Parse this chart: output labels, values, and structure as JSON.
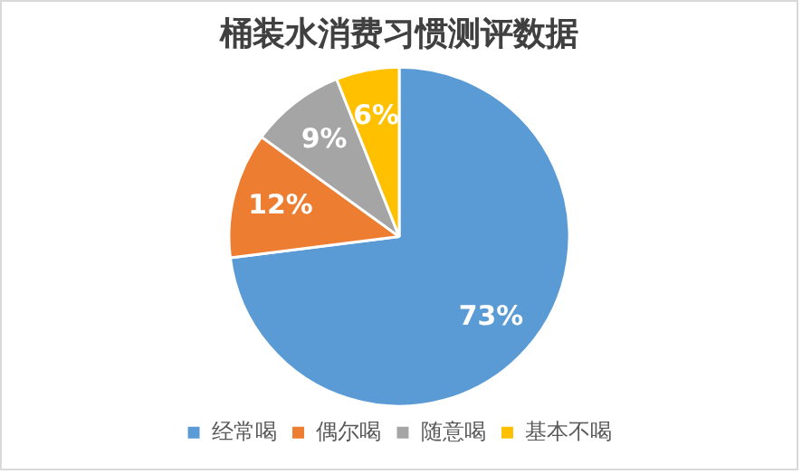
{
  "chart_data": {
    "type": "pie",
    "title": "桶装水消费习惯测评数据",
    "categories": [
      "经常喝",
      "偶尔喝",
      "随意喝",
      "基本不喝"
    ],
    "values": [
      73,
      12,
      9,
      6
    ],
    "colors": [
      "#5b9bd5",
      "#ed7d31",
      "#a5a5a5",
      "#ffc000"
    ],
    "value_labels": [
      "73%",
      "12%",
      "9%",
      "6%"
    ],
    "legend": "bottom"
  }
}
